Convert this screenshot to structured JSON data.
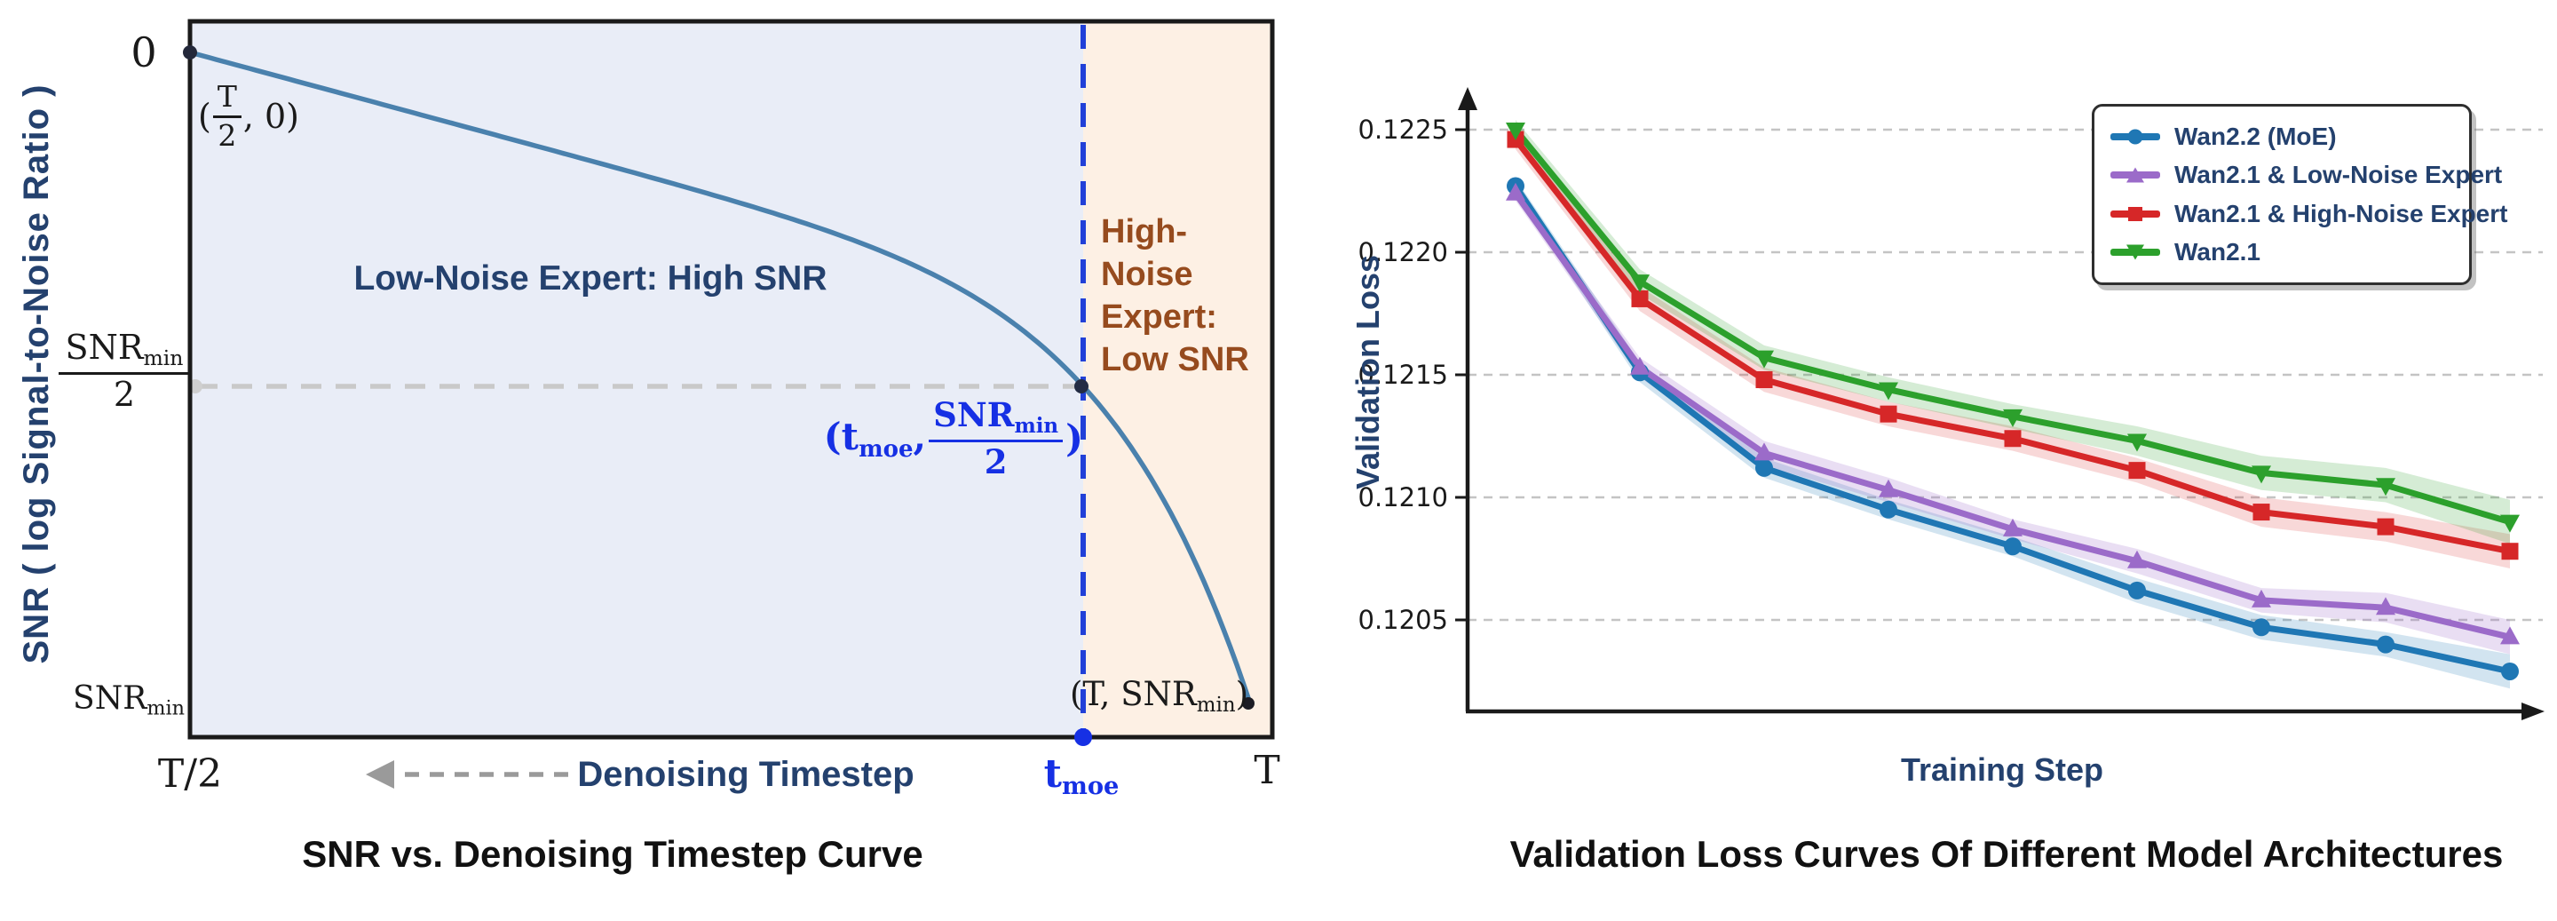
{
  "page": {
    "background": "#ffffff"
  },
  "chart_data": [
    {
      "type": "line",
      "name": "snr-schematic",
      "title": "SNR vs. Denoising Timestep Curve",
      "xlabel": "Denoising Timestep",
      "ylabel": "SNR ( log Signal-to-Noise Ratio )",
      "x_ticks": {
        "half_T": "T/2",
        "moe": {
          "base": "t",
          "sub": "moe"
        },
        "T": "T"
      },
      "y_ticks": {
        "zero": "0",
        "mid": {
          "num": "SNR",
          "num_sub": "min",
          "den": "2"
        },
        "min": {
          "base": "SNR",
          "sub": "min"
        }
      },
      "regions": [
        {
          "label": "Low-Noise Expert: High SNR",
          "fill": "#e9edf7",
          "text_color": "#24416e",
          "x_range": [
            "T/2",
            "t_moe"
          ]
        },
        {
          "label_lines": [
            "High-",
            "Noise",
            "Expert:",
            "Low SNR"
          ],
          "fill": "#fdf0e4",
          "text_color": "#964b1e",
          "x_range": [
            "t_moe",
            "T"
          ]
        }
      ],
      "annotations": {
        "start_point": {
          "open": "(",
          "num": "T",
          "den": "2",
          "rest": ", 0)"
        },
        "moe_point": {
          "open": "(t",
          "open_sub": "moe",
          "sep": ", ",
          "num": "SNR",
          "num_sub": "min",
          "den": "2",
          "close": ")"
        },
        "end_point": {
          "text": "(T, SNR",
          "sub": "min",
          "close": ")"
        }
      },
      "colors": {
        "curve": "#4a81ad",
        "moe_accent": "#1630e4",
        "moe_dash_line": "#2140d8",
        "gray_dash": "#c9c9c9",
        "axis": "#1a1a1a",
        "arrow_gray": "#9a9a9a"
      }
    },
    {
      "type": "line",
      "name": "validation-loss",
      "title": "Validation Loss Curves Of Different Model Architectures",
      "xlabel": "Training Step",
      "ylabel": "Validation Loss",
      "x": [
        1,
        2,
        3,
        4,
        5,
        6,
        7,
        8,
        9
      ],
      "y_ticks": [
        "0.1225",
        "0.1220",
        "0.1215",
        "0.1210",
        "0.1205"
      ],
      "ylim": [
        0.12013,
        0.12264
      ],
      "grid": "horizontal-dashed",
      "legend_position": "upper right",
      "series": [
        {
          "name": "Wan2.2 (MoE)",
          "color": "#1f77b4",
          "band_color": "rgba(31,119,180,0.20)",
          "marker": "circle",
          "values": [
            0.12227,
            0.12151,
            0.12112,
            0.12095,
            0.1208,
            0.12062,
            0.12047,
            0.1204,
            0.12029
          ],
          "band_halfwidth": [
            3e-05,
            4e-05,
            4e-05,
            4e-05,
            4e-05,
            5e-05,
            5e-05,
            5e-05,
            7e-05
          ]
        },
        {
          "name": "Wan2.1 & Low-Noise Expert",
          "color": "#9b6bc9",
          "band_color": "rgba(155,107,201,0.22)",
          "marker": "triangle-up",
          "values": [
            0.12224,
            0.12153,
            0.12118,
            0.12103,
            0.12087,
            0.12074,
            0.12058,
            0.12055,
            0.12043
          ],
          "band_halfwidth": [
            3e-05,
            4e-05,
            5e-05,
            5e-05,
            4e-05,
            5e-05,
            5e-05,
            6e-05,
            7e-05
          ]
        },
        {
          "name": "Wan2.1 & High-Noise Expert",
          "color": "#d62728",
          "band_color": "rgba(214,39,40,0.18)",
          "marker": "square",
          "values": [
            0.12246,
            0.12181,
            0.12148,
            0.12134,
            0.12124,
            0.12111,
            0.12094,
            0.12088,
            0.12078
          ],
          "band_halfwidth": [
            4e-05,
            5e-05,
            5e-05,
            5e-05,
            5e-05,
            5e-05,
            6e-05,
            6e-05,
            7e-05
          ]
        },
        {
          "name": "Wan2.1",
          "color": "#2ca02c",
          "band_color": "rgba(44,160,44,0.20)",
          "marker": "triangle-down",
          "values": [
            0.1225,
            0.12188,
            0.12157,
            0.12144,
            0.12133,
            0.12123,
            0.1211,
            0.12105,
            0.1209
          ],
          "band_halfwidth": [
            4e-05,
            5e-05,
            5e-05,
            5e-05,
            5e-05,
            6e-05,
            7e-05,
            7e-05,
            9e-05
          ]
        }
      ],
      "text_color": "#24416e",
      "axis_color": "#1a1a1a",
      "grid_color": "#c4c4c4"
    }
  ]
}
